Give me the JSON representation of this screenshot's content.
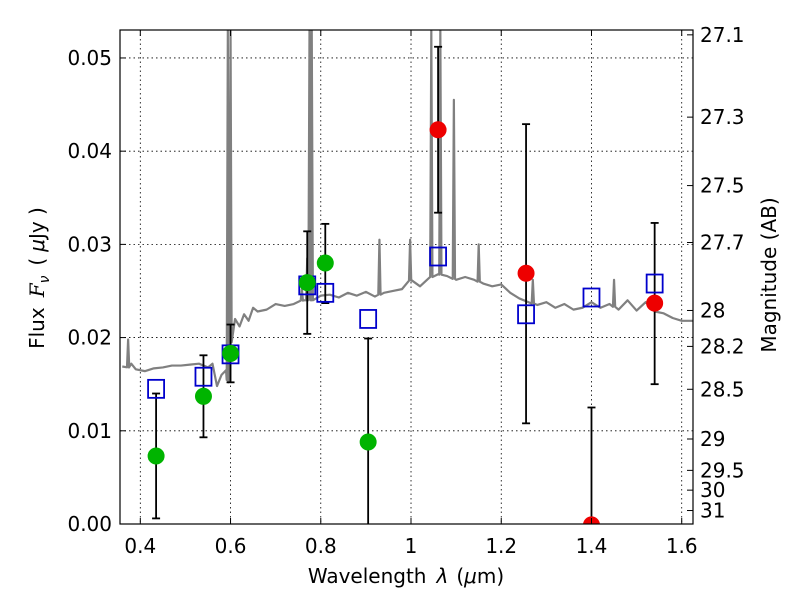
{
  "chart_data": {
    "type": "scatter",
    "xlabel_main": "Wavelength",
    "xlabel_sym": "λ",
    "xlabel_unit_open": "(",
    "xlabel_unit_mu": "μ",
    "xlabel_unit_rest": "m)",
    "ylabel_main": "Flux",
    "ylabel_sym": "F",
    "ylabel_sub": "ν",
    "ylabel_unit_open": "(",
    "ylabel_unit_mu": "μ",
    "ylabel_unit_rest": "Jy )",
    "y2label": "Magnitude (AB)",
    "xlim": [
      0.355,
      1.625
    ],
    "ylim": [
      0.0,
      0.053
    ],
    "grid": true,
    "xticks": [
      {
        "v": 0.4,
        "label": "0.4"
      },
      {
        "v": 0.6,
        "label": "0.6"
      },
      {
        "v": 0.8,
        "label": "0.8"
      },
      {
        "v": 1.0,
        "label": "1"
      },
      {
        "v": 1.2,
        "label": "1.2"
      },
      {
        "v": 1.4,
        "label": "1.4"
      },
      {
        "v": 1.6,
        "label": "1.6"
      }
    ],
    "yticks": [
      {
        "v": 0.0,
        "label": "0.00"
      },
      {
        "v": 0.01,
        "label": "0.01"
      },
      {
        "v": 0.02,
        "label": "0.02"
      },
      {
        "v": 0.03,
        "label": "0.03"
      },
      {
        "v": 0.04,
        "label": "0.04"
      },
      {
        "v": 0.05,
        "label": "0.05"
      }
    ],
    "y2ticks": [
      {
        "mag": 27.1,
        "label": "27.1"
      },
      {
        "mag": 27.3,
        "label": "27.3"
      },
      {
        "mag": 27.5,
        "label": "27.5"
      },
      {
        "mag": 27.7,
        "label": "27.7"
      },
      {
        "mag": 28.0,
        "label": "28"
      },
      {
        "mag": 28.2,
        "label": "28.2"
      },
      {
        "mag": 28.5,
        "label": "28.5"
      },
      {
        "mag": 29.0,
        "label": "29"
      },
      {
        "mag": 29.5,
        "label": "29.5"
      },
      {
        "mag": 30.0,
        "label": "30"
      },
      {
        "mag": 31.0,
        "label": "31"
      }
    ],
    "series": [
      {
        "name": "model-spectrum",
        "kind": "line",
        "color": "#808080",
        "x": [
          0.36,
          0.375,
          0.38,
          0.39,
          0.41,
          0.43,
          0.45,
          0.47,
          0.49,
          0.51,
          0.53,
          0.55,
          0.56,
          0.57,
          0.58,
          0.59,
          0.595,
          0.6,
          0.61,
          0.62,
          0.63,
          0.64,
          0.65,
          0.66,
          0.68,
          0.7,
          0.72,
          0.74,
          0.76,
          0.78,
          0.8,
          0.82,
          0.84,
          0.86,
          0.88,
          0.9,
          0.92,
          0.94,
          0.96,
          0.98,
          1.0,
          1.02,
          1.04,
          1.06,
          1.08,
          1.1,
          1.12,
          1.14,
          1.16,
          1.18,
          1.2,
          1.22,
          1.24,
          1.26,
          1.28,
          1.3,
          1.32,
          1.34,
          1.36,
          1.38,
          1.4,
          1.42,
          1.44,
          1.46,
          1.48,
          1.5,
          1.52,
          1.54,
          1.56,
          1.58,
          1.6,
          1.625
        ],
        "y": [
          0.0169,
          0.0168,
          0.0172,
          0.0166,
          0.0164,
          0.0167,
          0.0168,
          0.017,
          0.017,
          0.0171,
          0.0172,
          0.0168,
          0.0172,
          0.0148,
          0.016,
          0.0165,
          0.0152,
          0.0195,
          0.022,
          0.0212,
          0.0225,
          0.0218,
          0.0232,
          0.0228,
          0.023,
          0.0236,
          0.0234,
          0.0236,
          0.024,
          0.024,
          0.0245,
          0.0246,
          0.0243,
          0.0248,
          0.0245,
          0.0249,
          0.0244,
          0.0248,
          0.025,
          0.0252,
          0.0262,
          0.0255,
          0.0264,
          0.0268,
          0.0266,
          0.0262,
          0.0265,
          0.0262,
          0.0258,
          0.0255,
          0.0257,
          0.0248,
          0.0242,
          0.0238,
          0.0235,
          0.0238,
          0.0232,
          0.0236,
          0.023,
          0.0232,
          0.0238,
          0.0232,
          0.0236,
          0.023,
          0.024,
          0.0229,
          0.0238,
          0.0228,
          0.0226,
          0.0221,
          0.0218,
          0.0218
        ],
        "peaks": [
          {
            "x": 0.373,
            "y": 0.0198
          },
          {
            "x": 0.594,
            "y": 0.053
          },
          {
            "x": 0.6,
            "y": 0.053
          },
          {
            "x": 0.758,
            "y": 0.0252
          },
          {
            "x": 0.77,
            "y": 0.0285
          },
          {
            "x": 0.775,
            "y": 0.053
          },
          {
            "x": 0.78,
            "y": 0.053
          },
          {
            "x": 0.93,
            "y": 0.0305
          },
          {
            "x": 0.998,
            "y": 0.0305
          },
          {
            "x": 1.045,
            "y": 0.053
          },
          {
            "x": 1.065,
            "y": 0.053
          },
          {
            "x": 1.095,
            "y": 0.0455
          },
          {
            "x": 1.15,
            "y": 0.03
          },
          {
            "x": 1.27,
            "y": 0.0262
          },
          {
            "x": 1.45,
            "y": 0.0262
          }
        ]
      },
      {
        "name": "model-photometry",
        "kind": "open-square",
        "color": "#0000cc",
        "points": [
          {
            "x": 0.435,
            "y": 0.0145
          },
          {
            "x": 0.54,
            "y": 0.0158
          },
          {
            "x": 0.6,
            "y": 0.0182
          },
          {
            "x": 0.77,
            "y": 0.0256
          },
          {
            "x": 0.81,
            "y": 0.0248
          },
          {
            "x": 0.905,
            "y": 0.022
          },
          {
            "x": 1.06,
            "y": 0.0287
          },
          {
            "x": 1.255,
            "y": 0.0225
          },
          {
            "x": 1.4,
            "y": 0.0243
          },
          {
            "x": 1.54,
            "y": 0.0258
          }
        ]
      },
      {
        "name": "optical-detections",
        "kind": "filled-circle",
        "color": "#00b400",
        "points": [
          {
            "x": 0.435,
            "y": 0.0073,
            "lo": 0.0006,
            "hi": 0.014
          },
          {
            "x": 0.54,
            "y": 0.0137,
            "lo": 0.0093,
            "hi": 0.0181
          },
          {
            "x": 0.6,
            "y": 0.0183,
            "lo": 0.0152,
            "hi": 0.0214
          },
          {
            "x": 0.77,
            "y": 0.0259,
            "lo": 0.0204,
            "hi": 0.0314
          },
          {
            "x": 0.81,
            "y": 0.028,
            "lo": 0.0237,
            "hi": 0.0322
          },
          {
            "x": 0.905,
            "y": 0.0088,
            "lo": -0.002,
            "hi": 0.0199
          }
        ]
      },
      {
        "name": "nir-detections",
        "kind": "filled-circle",
        "color": "#ee0000",
        "points": [
          {
            "x": 1.06,
            "y": 0.0423,
            "lo": 0.0334,
            "hi": 0.0512
          },
          {
            "x": 1.255,
            "y": 0.0269,
            "lo": 0.0108,
            "hi": 0.0429
          },
          {
            "x": 1.4,
            "y": -0.0001,
            "lo": -0.002,
            "hi": 0.0125
          },
          {
            "x": 1.54,
            "y": 0.0237,
            "lo": 0.015,
            "hi": 0.0323
          }
        ]
      }
    ]
  }
}
